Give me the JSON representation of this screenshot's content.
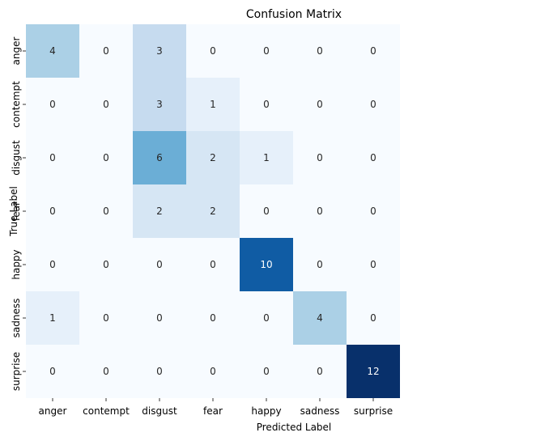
{
  "chart_data": {
    "type": "heatmap",
    "title": "Confusion Matrix",
    "xlabel": "Predicted Label",
    "ylabel": "True Label",
    "x_categories": [
      "anger",
      "contempt",
      "disgust",
      "fear",
      "happy",
      "sadness",
      "surprise"
    ],
    "y_categories": [
      "anger",
      "contempt",
      "disgust",
      "fear",
      "happy",
      "sadness",
      "surprise"
    ],
    "values": [
      [
        4,
        0,
        3,
        0,
        0,
        0,
        0
      ],
      [
        0,
        0,
        3,
        1,
        0,
        0,
        0
      ],
      [
        0,
        0,
        6,
        2,
        1,
        0,
        0
      ],
      [
        0,
        0,
        2,
        2,
        0,
        0,
        0
      ],
      [
        0,
        0,
        0,
        0,
        10,
        0,
        0
      ],
      [
        1,
        0,
        0,
        0,
        0,
        4,
        0
      ],
      [
        0,
        0,
        0,
        0,
        0,
        0,
        12
      ]
    ],
    "colormap": "Blues",
    "colorbar": false,
    "vmin": 0,
    "vmax": 12
  }
}
